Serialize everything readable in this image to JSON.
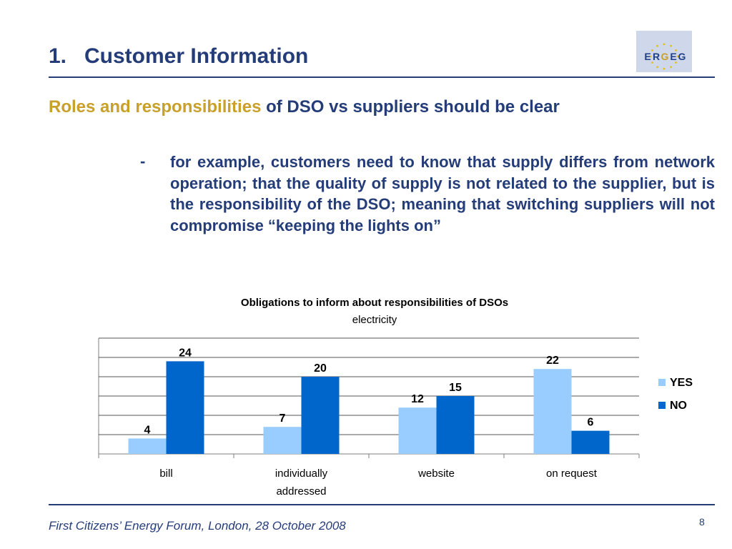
{
  "slide": {
    "title_number": "1.",
    "title": "Customer Information",
    "subtitle_highlight": "Roles and responsibilities",
    "subtitle_rest": " of DSO vs suppliers should be clear",
    "bullet_marker": "-",
    "bullet_text": "for example, customers need to know that supply differs from network operation; that the quality of supply is not related to the supplier, but is the responsibility of the DSO; meaning that switching suppliers will not compromise “keeping the lights on”",
    "footer": "First Citizens’ Energy Forum, London, 28 October 2008",
    "page_number": "8"
  },
  "logo": {
    "text": "ERGEG",
    "letters": [
      "E",
      "R",
      "G",
      "E",
      "G"
    ],
    "letter_colors": [
      "#1f3f8a",
      "#1f3f8a",
      "#c8a02a",
      "#1f3f8a",
      "#1f3f8a"
    ],
    "star_color": "#e0c020",
    "background": "#cfd8ea"
  },
  "colors": {
    "text_navy": "#243c78",
    "highlight_gold": "#c8a02a",
    "yes": "#99ccff",
    "no": "#0066cc"
  },
  "chart_data": {
    "type": "bar",
    "title": "Obligations to inform about responsibilities of DSOs",
    "subtitle": "electricity",
    "categories": [
      [
        "bill"
      ],
      [
        "individually",
        "addressed"
      ],
      [
        "website"
      ],
      [
        "on request"
      ]
    ],
    "series": [
      {
        "name": "YES",
        "color": "#99ccff",
        "values": [
          4,
          7,
          12,
          22
        ]
      },
      {
        "name": "NO",
        "color": "#0066cc",
        "values": [
          24,
          20,
          15,
          6
        ]
      }
    ],
    "ylim": [
      0,
      30
    ],
    "gridlines": [
      5,
      10,
      15,
      20,
      25,
      30
    ],
    "grid": true,
    "legend": "right"
  }
}
